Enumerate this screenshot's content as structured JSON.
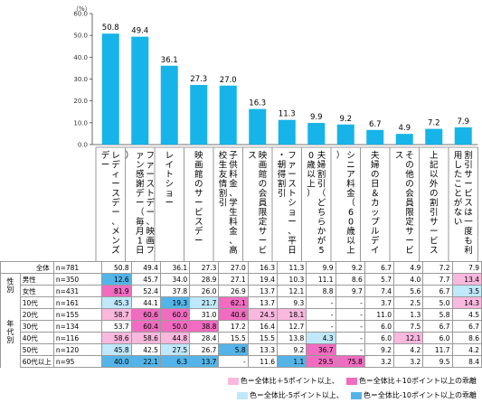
{
  "chart_data": {
    "type": "bar",
    "unit_label": "（%）",
    "ylim": [
      0,
      60
    ],
    "yticks": [
      "0.0",
      "10.0",
      "20.0",
      "30.0",
      "40.0",
      "50.0",
      "60.0"
    ],
    "bar_color": "#16b4e8",
    "categories": [
      "レディースデー、メンズデー",
      "ファーストデー、映画ファン感謝デー（毎月1日）",
      "レイトショー",
      "映画館のサービスデー",
      "子供料金、学生料金、高校生友情割引",
      "映画館の会員限定サービス",
      "ファーストショー、平日・朝得割引",
      "夫婦割引（どちらかが50歳以上）",
      "シニア料金（60歳以上）",
      "夫婦の日＆カップルデイ",
      "その他の会員限定サービス",
      "上記以外の割引サービス",
      "割引サービスは一度も利用したことがない"
    ],
    "values": [
      50.8,
      49.4,
      36.1,
      27.3,
      27.0,
      16.3,
      11.3,
      9.9,
      9.2,
      6.7,
      4.9,
      7.2,
      7.9
    ]
  },
  "table": {
    "rows": [
      {
        "group": "",
        "label": "全体",
        "n": "n=781",
        "values": [
          "50.8",
          "49.4",
          "36.1",
          "27.3",
          "27.0",
          "16.3",
          "11.3",
          "9.9",
          "9.2",
          "6.7",
          "4.9",
          "7.2",
          "7.9"
        ],
        "hl": [
          "",
          "",
          "",
          "",
          "",
          "",
          "",
          "",
          "",
          "",
          "",
          "",
          ""
        ]
      },
      {
        "group": "性別",
        "label": "男性",
        "n": "n=350",
        "values": [
          "12.6",
          "45.7",
          "34.0",
          "28.9",
          "27.1",
          "19.4",
          "10.3",
          "11.1",
          "8.6",
          "5.7",
          "4.0",
          "7.7",
          "13.4"
        ],
        "hl": [
          "m10",
          "",
          "",
          "",
          "",
          "",
          "",
          "",
          "",
          "",
          "",
          "",
          "p5"
        ]
      },
      {
        "group": "性別",
        "label": "女性",
        "n": "n=431",
        "values": [
          "81.9",
          "52.4",
          "37.8",
          "26.0",
          "26.9",
          "13.7",
          "12.1",
          "8.8",
          "9.7",
          "7.4",
          "5.6",
          "6.7",
          "3.5"
        ],
        "hl": [
          "p10",
          "",
          "",
          "",
          "",
          "",
          "",
          "",
          "",
          "",
          "",
          "",
          "m5"
        ]
      },
      {
        "group": "年代別",
        "label": "10代",
        "n": "n=161",
        "values": [
          "45.3",
          "44.1",
          "19.3",
          "21.7",
          "62.1",
          "13.7",
          "9.3",
          "-",
          "-",
          "3.7",
          "2.5",
          "5.0",
          "14.3"
        ],
        "hl": [
          "m5",
          "",
          "m10",
          "m5",
          "p10",
          "",
          "",
          "",
          "",
          "",
          "",
          "",
          "p5"
        ]
      },
      {
        "group": "年代別",
        "label": "20代",
        "n": "n=155",
        "values": [
          "58.7",
          "60.6",
          "60.0",
          "31.0",
          "40.6",
          "24.5",
          "18.1",
          "-",
          "-",
          "11.0",
          "1.3",
          "5.8",
          "4.5"
        ],
        "hl": [
          "p5",
          "p10",
          "p10",
          "",
          "p10",
          "p5",
          "p5",
          "",
          "",
          "",
          "",
          "",
          ""
        ]
      },
      {
        "group": "年代別",
        "label": "30代",
        "n": "n=134",
        "values": [
          "53.7",
          "60.4",
          "50.0",
          "38.8",
          "17.2",
          "16.4",
          "12.7",
          "-",
          "-",
          "6.0",
          "7.5",
          "6.7",
          "6.7"
        ],
        "hl": [
          "",
          "p10",
          "p10",
          "p10",
          "",
          "",
          "",
          "",
          "",
          "",
          "",
          "",
          ""
        ]
      },
      {
        "group": "年代別",
        "label": "40代",
        "n": "n=116",
        "values": [
          "58.6",
          "58.6",
          "44.8",
          "28.4",
          "15.5",
          "15.5",
          "13.8",
          "4.3",
          "-",
          "6.0",
          "12.1",
          "6.0",
          "8.6"
        ],
        "hl": [
          "p5",
          "p5",
          "p5",
          "",
          "",
          "",
          "",
          "m5",
          "",
          "",
          "p5",
          "",
          ""
        ]
      },
      {
        "group": "年代別",
        "label": "50代",
        "n": "n=120",
        "values": [
          "45.8",
          "42.5",
          "27.5",
          "26.7",
          "5.8",
          "13.3",
          "9.2",
          "36.7",
          "-",
          "9.2",
          "4.2",
          "11.7",
          "4.2"
        ],
        "hl": [
          "m5",
          "",
          "m5",
          "",
          "m10",
          "",
          "",
          "p10",
          "",
          "",
          "",
          "",
          ""
        ]
      },
      {
        "group": "年代別",
        "label": "60代以上",
        "n": "n=95",
        "values": [
          "40.0",
          "22.1",
          "6.3",
          "13.7",
          "-",
          "11.6",
          "1.1",
          "29.5",
          "75.8",
          "3.2",
          "3.2",
          "9.5",
          "8.4"
        ],
        "hl": [
          "m10",
          "m10",
          "m10",
          "m10",
          "",
          "",
          "m10",
          "p10",
          "p10",
          "",
          "",
          "",
          ""
        ]
      }
    ]
  },
  "legend": {
    "p10": "色＝全体比＋10ポイント以上の乖離",
    "p5": "色＝全体比＋5ポイント以上、",
    "m5": "色＝全体比-5ポイント以上、",
    "m10": "色＝全体比-10ポイント以上の乖離"
  }
}
